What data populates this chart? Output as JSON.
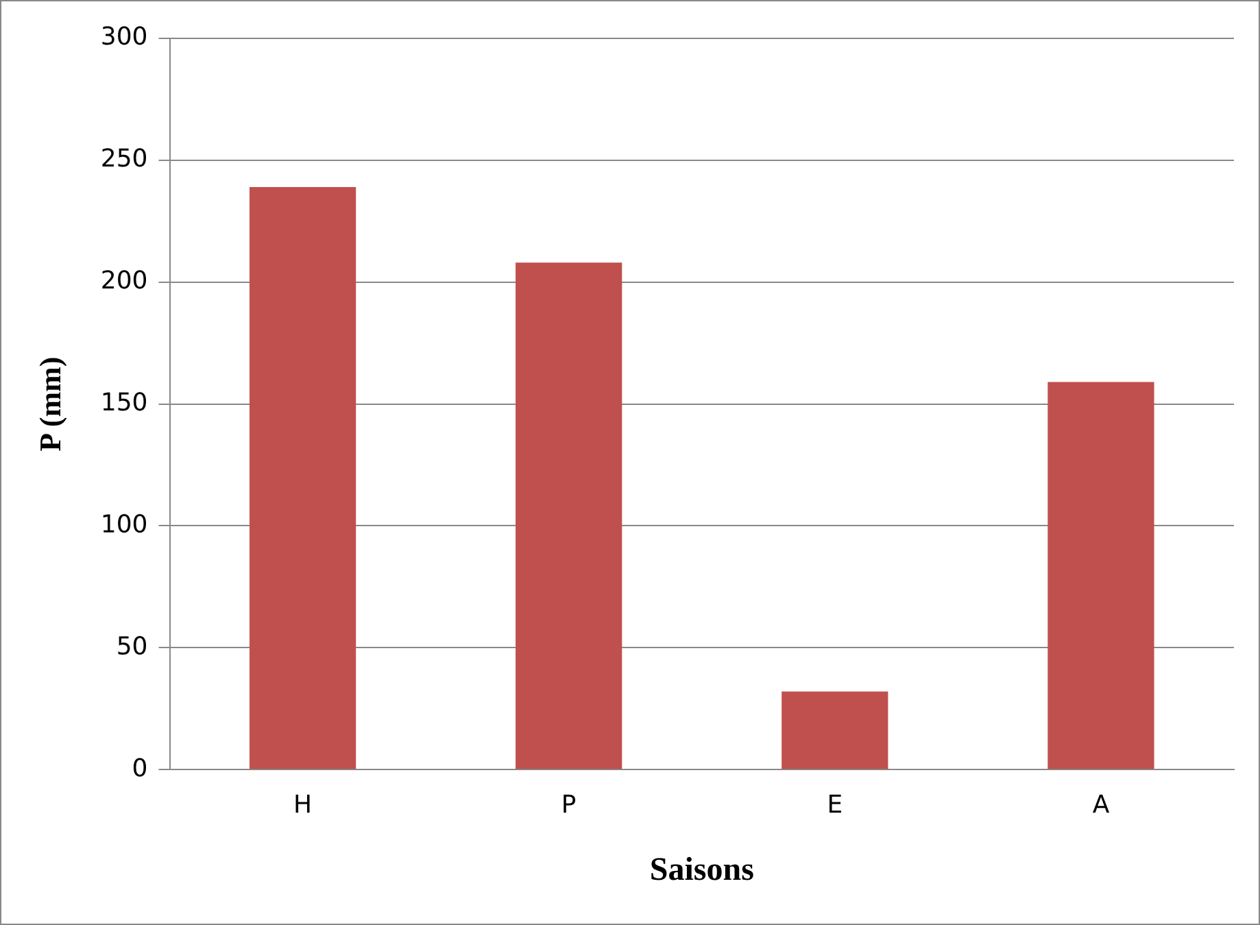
{
  "chart_data": {
    "type": "bar",
    "xlabel": "Saisons",
    "ylabel": "P (mm)",
    "categories": [
      "H",
      "P",
      "E",
      "A"
    ],
    "values": [
      239,
      208,
      32,
      159
    ],
    "color": "#c0504d",
    "ylim": [
      0,
      300
    ],
    "yticks": [
      0,
      50,
      100,
      150,
      200,
      250,
      300
    ],
    "grid": "y",
    "legend": false
  }
}
